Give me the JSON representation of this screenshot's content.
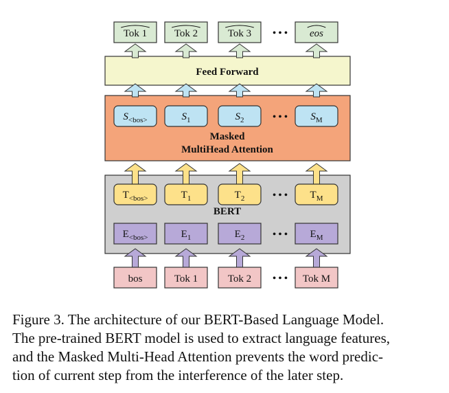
{
  "colors": {
    "output_token": "#d9ead3",
    "feed_forward": "#f5f6cd",
    "attention": "#f4a47a",
    "s_box": "#bee3f3",
    "bert_block": "#cfcfcf",
    "t_box": "#fde18a",
    "e_box": "#b7a9d8",
    "input_token": "#f2c6c6",
    "arrow_output": "#d9ead3",
    "arrow_s": "#bee3f3",
    "arrow_t": "#fde18a",
    "arrow_e": "#b7a9d8"
  },
  "diagram": {
    "outputs": [
      {
        "main": "Tok 1",
        "hat": true
      },
      {
        "main": "Tok 2",
        "hat": true
      },
      {
        "main": "Tok 3",
        "hat": true
      },
      {
        "main": "eos",
        "hat": true,
        "italic": true
      }
    ],
    "feed_forward": "Feed Forward",
    "attention_line1": "Masked",
    "attention_line2": "MultiHead Attention",
    "s_boxes": [
      {
        "main": "S",
        "sub": "<bos>"
      },
      {
        "main": "S",
        "sub": "1"
      },
      {
        "main": "S",
        "sub": "2"
      },
      {
        "main": "S",
        "sub": "M"
      }
    ],
    "bert_label": "BERT",
    "t_boxes": [
      {
        "main": "T",
        "sub": "<bos>"
      },
      {
        "main": "T",
        "sub": "1"
      },
      {
        "main": "T",
        "sub": "2"
      },
      {
        "main": "T",
        "sub": "M"
      }
    ],
    "e_boxes": [
      {
        "main": "E",
        "sub": "<bos>"
      },
      {
        "main": "E",
        "sub": "1"
      },
      {
        "main": "E",
        "sub": "2"
      },
      {
        "main": "E",
        "sub": "M"
      }
    ],
    "inputs": [
      "bos",
      "Tok 1",
      "Tok 2",
      "Tok M"
    ],
    "ellipsis": "• • •"
  },
  "caption": {
    "line1": "Figure 3. The architecture of our BERT-Based Language Model.",
    "line2": "The pre-trained BERT model is used to extract language features,",
    "line3": "and the Masked Multi-Head Attention prevents the word predic-",
    "line4": "tion of current step from the interference of the later step."
  }
}
